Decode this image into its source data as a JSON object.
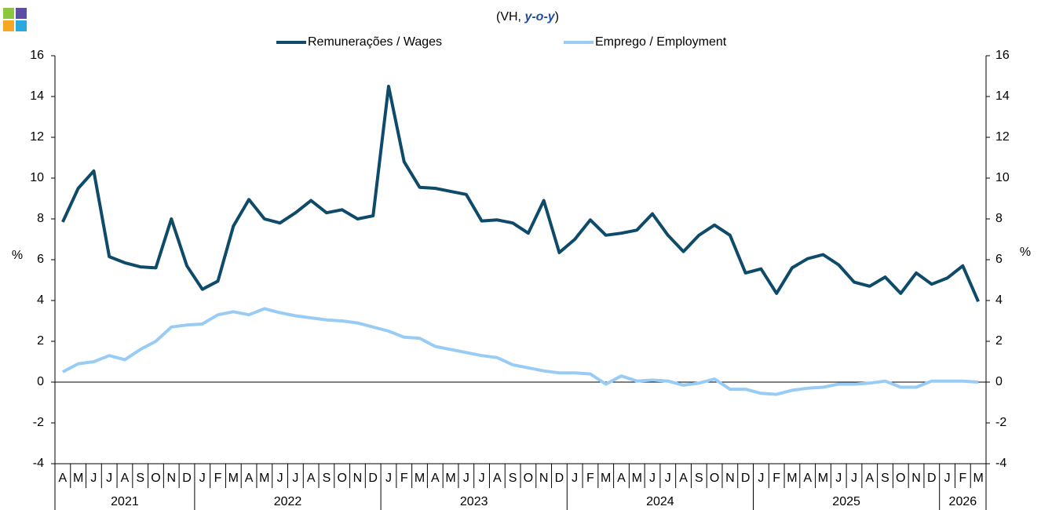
{
  "chart_data": {
    "type": "line",
    "subtitle_parts": [
      "(VH, ",
      "y-o-y",
      ")"
    ],
    "y_label": "%",
    "y2_label": "%",
    "categories": [
      "A",
      "M",
      "J",
      "J",
      "A",
      "S",
      "O",
      "N",
      "D",
      "J",
      "F",
      "M",
      "A",
      "M",
      "J",
      "J",
      "A",
      "S",
      "O",
      "N",
      "D",
      "J",
      "F",
      "M",
      "A",
      "M",
      "J",
      "J",
      "A",
      "S",
      "O",
      "N",
      "D",
      "J",
      "F",
      "M",
      "A",
      "M",
      "J",
      "J",
      "A",
      "S",
      "O",
      "N",
      "D",
      "J",
      "F",
      "M",
      "A",
      "M",
      "J",
      "J",
      "A",
      "S",
      "O",
      "N",
      "D",
      "J",
      "F",
      "M"
    ],
    "year_labels": [
      "2021",
      "2022",
      "2023",
      "2024",
      "2025",
      "2026"
    ],
    "series": [
      {
        "name": "Remunerações / Wages",
        "color": "#0e4a6a",
        "values": [
          7.85,
          9.5,
          10.35,
          6.15,
          5.85,
          5.65,
          5.6,
          8.0,
          5.7,
          4.55,
          4.95,
          7.65,
          8.95,
          8.0,
          7.8,
          8.3,
          8.9,
          8.3,
          8.45,
          8.0,
          8.15,
          14.5,
          10.8,
          9.55,
          9.5,
          9.35,
          9.2,
          7.9,
          7.95,
          7.8,
          7.3,
          8.9,
          6.35,
          7.0,
          7.95,
          7.2,
          7.3,
          7.45,
          8.25,
          7.2,
          6.4,
          7.2,
          7.7,
          7.2,
          5.35,
          5.55,
          4.35,
          5.6,
          6.05,
          6.25,
          5.75,
          4.9,
          4.7,
          5.15,
          4.35,
          5.35,
          4.8,
          5.1,
          5.7,
          3.95
        ]
      },
      {
        "name": "Emprego / Employment",
        "color": "#99ccf5",
        "values": [
          0.5,
          0.9,
          1.0,
          1.3,
          1.1,
          1.6,
          2.0,
          2.7,
          2.8,
          2.85,
          3.3,
          3.45,
          3.3,
          3.6,
          3.4,
          3.25,
          3.15,
          3.05,
          3.0,
          2.9,
          2.7,
          2.5,
          2.2,
          2.15,
          1.75,
          1.6,
          1.45,
          1.3,
          1.2,
          0.85,
          0.7,
          0.55,
          0.45,
          0.45,
          0.4,
          -0.1,
          0.3,
          0.05,
          0.1,
          0.05,
          -0.15,
          -0.05,
          0.15,
          -0.35,
          -0.35,
          -0.55,
          -0.6,
          -0.4,
          -0.3,
          -0.25,
          -0.1,
          -0.1,
          -0.05,
          0.05,
          -0.25,
          -0.25,
          0.05,
          0.05,
          0.05,
          0.0
        ]
      }
    ],
    "ylim": [
      -4,
      16
    ],
    "yticks": [
      -4,
      -2,
      0,
      2,
      4,
      6,
      8,
      10,
      12,
      14,
      16
    ],
    "y2lim": [
      -4,
      16
    ],
    "y2ticks": [
      -4,
      -2,
      0,
      2,
      4,
      6,
      8,
      10,
      12,
      14,
      16
    ],
    "legend": "top"
  }
}
